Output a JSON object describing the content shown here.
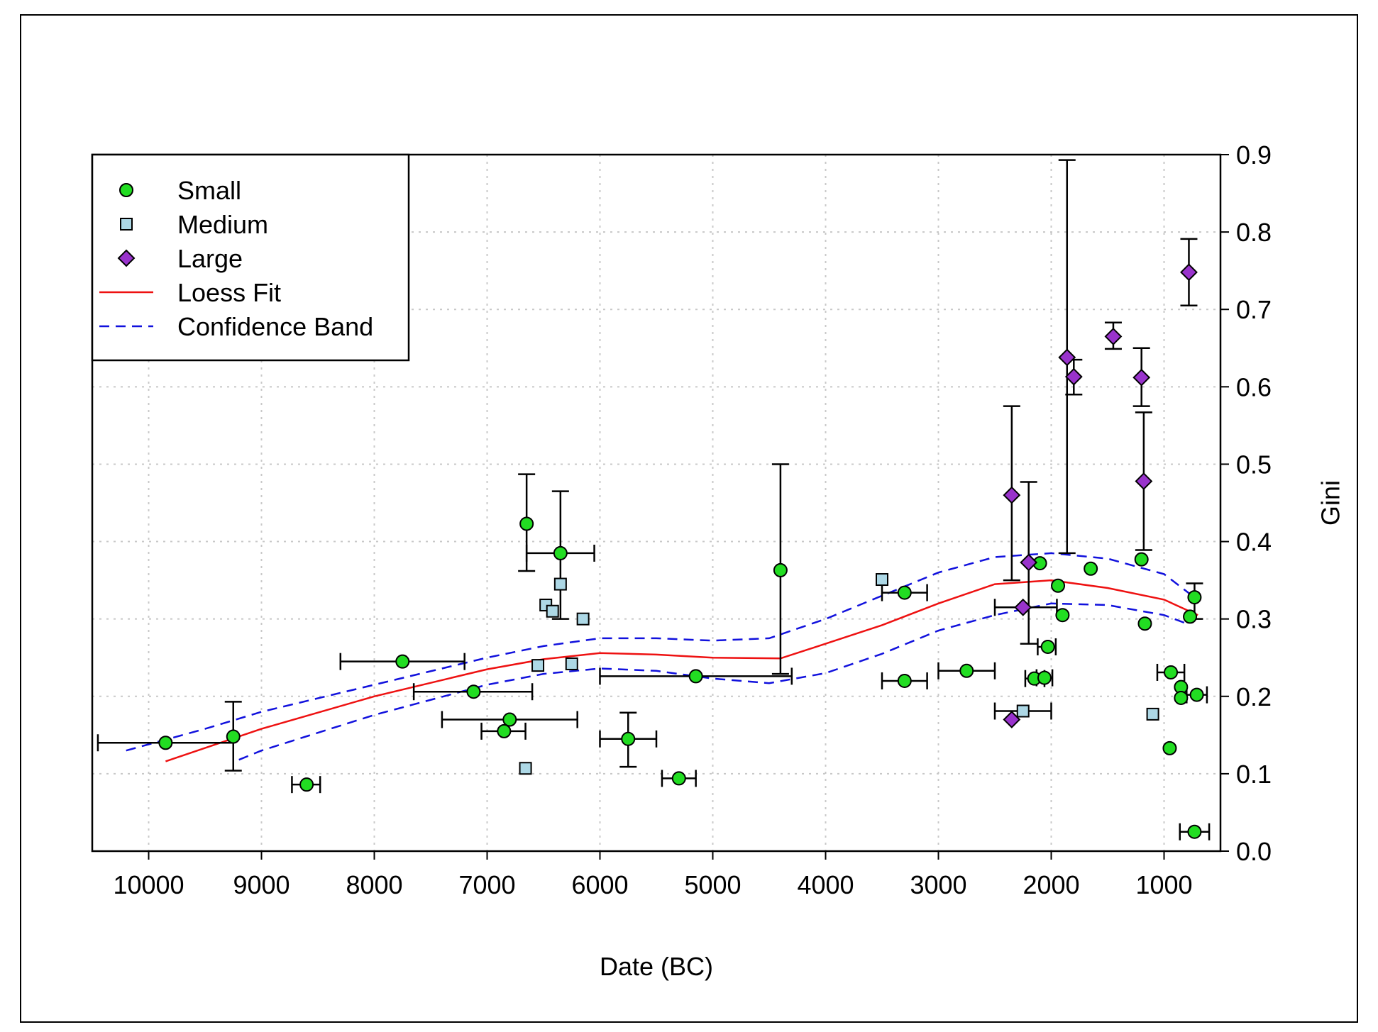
{
  "chart_data": {
    "type": "scatter",
    "title": "",
    "xlabel": "Date (BC)",
    "ylabel": "Gini",
    "x_reversed": true,
    "xlim": [
      10500,
      500
    ],
    "ylim": [
      0.0,
      0.9
    ],
    "x_ticks": [
      10000,
      9000,
      8000,
      7000,
      6000,
      5000,
      4000,
      3000,
      2000,
      1000
    ],
    "x_tick_labels": [
      "10000",
      "9000",
      "8000",
      "7000",
      "6000",
      "5000",
      "4000",
      "3000",
      "2000",
      "1000"
    ],
    "y_ticks": [
      0.0,
      0.1,
      0.2,
      0.3,
      0.4,
      0.5,
      0.6,
      0.7,
      0.8,
      0.9
    ],
    "y_tick_labels": [
      "0.0",
      "0.1",
      "0.2",
      "0.3",
      "0.4",
      "0.5",
      "0.6",
      "0.7",
      "0.8",
      "0.9"
    ],
    "y_axis_side": "right",
    "grid": true,
    "legend_position": "top-left",
    "colors": {
      "small": "#22dd22",
      "medium": "#add8e6",
      "large": "#9933cc",
      "loess": "#ee1111",
      "band": "#1111dd"
    },
    "legend": [
      {
        "label": "Small",
        "kind": "circle"
      },
      {
        "label": "Medium",
        "kind": "square"
      },
      {
        "label": "Large",
        "kind": "diamond"
      },
      {
        "label": "Loess Fit",
        "kind": "solid-line"
      },
      {
        "label": "Confidence Band",
        "kind": "dashed-line"
      }
    ],
    "series": [
      {
        "name": "Small",
        "marker": "circle",
        "points": [
          {
            "x": 9850,
            "y": 0.14,
            "xerr": [
              10450,
              9250
            ]
          },
          {
            "x": 9250,
            "y": 0.148,
            "yerr": [
              0.104,
              0.193
            ]
          },
          {
            "x": 8600,
            "y": 0.086,
            "xerr": [
              8730,
              8480
            ]
          },
          {
            "x": 7750,
            "y": 0.245,
            "xerr": [
              8300,
              7200
            ]
          },
          {
            "x": 7120,
            "y": 0.206,
            "xerr": [
              7650,
              6600
            ]
          },
          {
            "x": 6800,
            "y": 0.17,
            "xerr": [
              7400,
              6200
            ]
          },
          {
            "x": 6850,
            "y": 0.155,
            "xerr": [
              7050,
              6660
            ]
          },
          {
            "x": 6650,
            "y": 0.423,
            "yerr": [
              0.362,
              0.487
            ]
          },
          {
            "x": 6350,
            "y": 0.385,
            "xerr": [
              6650,
              6050
            ],
            "yerr": [
              0.3,
              0.465
            ]
          },
          {
            "x": 5750,
            "y": 0.145,
            "xerr": [
              6000,
              5500
            ],
            "yerr": [
              0.109,
              0.179
            ]
          },
          {
            "x": 5300,
            "y": 0.094,
            "xerr": [
              5450,
              5150
            ]
          },
          {
            "x": 5150,
            "y": 0.226,
            "xerr": [
              6000,
              4300
            ]
          },
          {
            "x": 4400,
            "y": 0.363,
            "yerr": [
              0.229,
              0.5
            ]
          },
          {
            "x": 3300,
            "y": 0.334,
            "xerr": [
              3500,
              3100
            ]
          },
          {
            "x": 3300,
            "y": 0.22,
            "xerr": [
              3500,
              3100
            ]
          },
          {
            "x": 2750,
            "y": 0.233,
            "xerr": [
              3000,
              2500
            ]
          },
          {
            "x": 2100,
            "y": 0.372
          },
          {
            "x": 2150,
            "y": 0.223,
            "xerr": [
              2230,
              2060
            ]
          },
          {
            "x": 2060,
            "y": 0.224,
            "xerr": [
              2130,
              1990
            ]
          },
          {
            "x": 2030,
            "y": 0.264,
            "xerr": [
              2120,
              1960
            ]
          },
          {
            "x": 1940,
            "y": 0.343
          },
          {
            "x": 1900,
            "y": 0.305
          },
          {
            "x": 1650,
            "y": 0.365
          },
          {
            "x": 1170,
            "y": 0.294
          },
          {
            "x": 1200,
            "y": 0.377
          },
          {
            "x": 940,
            "y": 0.231,
            "xerr": [
              1060,
              820
            ]
          },
          {
            "x": 850,
            "y": 0.212
          },
          {
            "x": 850,
            "y": 0.198
          },
          {
            "x": 950,
            "y": 0.133
          },
          {
            "x": 770,
            "y": 0.303
          },
          {
            "x": 730,
            "y": 0.328,
            "yerr": [
              0.3,
              0.346
            ]
          },
          {
            "x": 710,
            "y": 0.202,
            "xerr": [
              800,
              620
            ]
          },
          {
            "x": 730,
            "y": 0.025,
            "xerr": [
              860,
              600
            ]
          }
        ]
      },
      {
        "name": "Medium",
        "marker": "square",
        "points": [
          {
            "x": 6660,
            "y": 0.107
          },
          {
            "x": 6550,
            "y": 0.24
          },
          {
            "x": 6480,
            "y": 0.318
          },
          {
            "x": 6420,
            "y": 0.31
          },
          {
            "x": 6350,
            "y": 0.345
          },
          {
            "x": 6250,
            "y": 0.242
          },
          {
            "x": 6150,
            "y": 0.3
          },
          {
            "x": 3500,
            "y": 0.351
          },
          {
            "x": 2250,
            "y": 0.181,
            "xerr": [
              2500,
              2000
            ]
          },
          {
            "x": 1100,
            "y": 0.177
          }
        ]
      },
      {
        "name": "Large",
        "marker": "diamond",
        "points": [
          {
            "x": 2350,
            "y": 0.46,
            "yerr": [
              0.35,
              0.575
            ]
          },
          {
            "x": 2200,
            "y": 0.373,
            "yerr": [
              0.268,
              0.477
            ]
          },
          {
            "x": 2250,
            "y": 0.315,
            "xerr": [
              2500,
              1950
            ]
          },
          {
            "x": 2350,
            "y": 0.17
          },
          {
            "x": 1860,
            "y": 0.638,
            "yerr": [
              0.385,
              0.893
            ]
          },
          {
            "x": 1800,
            "y": 0.613,
            "yerr": [
              0.59,
              0.635
            ]
          },
          {
            "x": 1450,
            "y": 0.665,
            "yerr": [
              0.649,
              0.683
            ]
          },
          {
            "x": 1200,
            "y": 0.612,
            "yerr": [
              0.575,
              0.65
            ]
          },
          {
            "x": 1180,
            "y": 0.478,
            "yerr": [
              0.389,
              0.567
            ]
          },
          {
            "x": 780,
            "y": 0.748,
            "yerr": [
              0.705,
              0.791
            ]
          }
        ]
      }
    ],
    "loess_fit": {
      "name": "Loess Fit",
      "x": [
        9850,
        9000,
        8000,
        7000,
        6500,
        6000,
        5500,
        5000,
        4400,
        4000,
        3500,
        3000,
        2500,
        2000,
        1500,
        1000,
        700
      ],
      "y": [
        0.116,
        0.158,
        0.2,
        0.235,
        0.248,
        0.256,
        0.254,
        0.25,
        0.249,
        0.268,
        0.292,
        0.32,
        0.345,
        0.35,
        0.34,
        0.325,
        0.305
      ]
    },
    "confidence_band": {
      "name": "Confidence Band",
      "upper": {
        "x": [
          10200,
          9500,
          9000,
          8000,
          7000,
          6500,
          6000,
          5500,
          5000,
          4500,
          4000,
          3500,
          3000,
          2500,
          2000,
          1500,
          1000,
          750
        ],
        "y": [
          0.13,
          0.158,
          0.18,
          0.215,
          0.25,
          0.265,
          0.275,
          0.275,
          0.272,
          0.275,
          0.3,
          0.33,
          0.36,
          0.38,
          0.385,
          0.378,
          0.358,
          0.33
        ]
      },
      "lower": {
        "x": [
          9200,
          9000,
          8000,
          7000,
          6500,
          6000,
          5500,
          5000,
          4500,
          4000,
          3500,
          3000,
          2500,
          2000,
          1500,
          1000,
          800
        ],
        "y": [
          0.118,
          0.13,
          0.176,
          0.215,
          0.229,
          0.236,
          0.233,
          0.223,
          0.217,
          0.23,
          0.255,
          0.285,
          0.305,
          0.32,
          0.318,
          0.305,
          0.294
        ]
      }
    }
  }
}
